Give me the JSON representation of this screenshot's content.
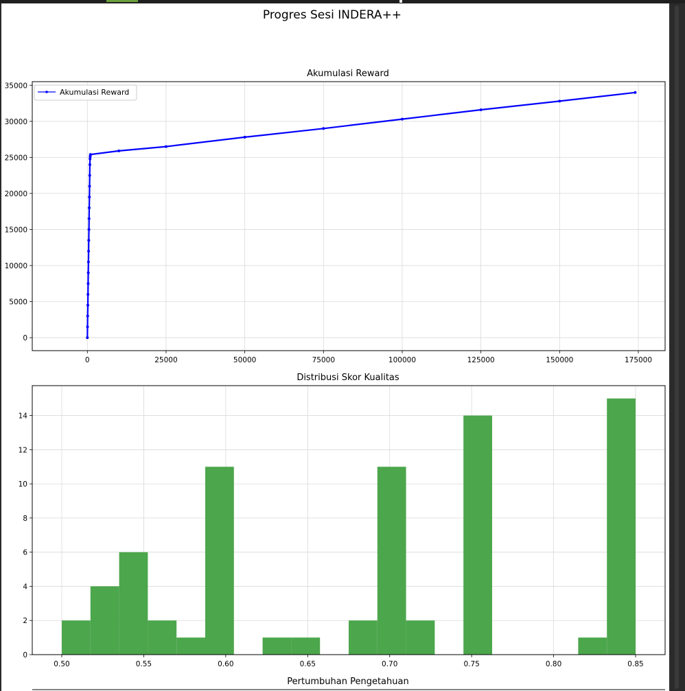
{
  "figure": {
    "title": "Progres Sesi INDERA++",
    "colors": {
      "line": "#0000ff",
      "bars": "#4ca64c",
      "grid": "#d9d9d9",
      "background": "#ffffff"
    }
  },
  "chart_data": [
    {
      "type": "line",
      "title": "Akumulasi Reward",
      "xlabel": "",
      "ylabel": "",
      "legend_position": "top-left",
      "grid": true,
      "xlim": [
        -17500,
        183500
      ],
      "ylim": [
        -1800,
        35500
      ],
      "x_ticks": [
        0,
        25000,
        50000,
        75000,
        100000,
        125000,
        150000,
        175000
      ],
      "y_ticks": [
        0,
        5000,
        10000,
        15000,
        20000,
        25000,
        30000,
        35000
      ],
      "series": [
        {
          "name": "Akumulasi Reward",
          "color": "#0000ff",
          "marker": "dot",
          "x": [
            0,
            50,
            100,
            150,
            200,
            250,
            300,
            350,
            400,
            450,
            500,
            550,
            600,
            650,
            700,
            750,
            800,
            850,
            900,
            950,
            1000,
            10000,
            25000,
            50000,
            75000,
            100000,
            125000,
            150000,
            174000
          ],
          "y": [
            0,
            1500,
            3000,
            4500,
            6000,
            7500,
            9000,
            10500,
            12000,
            13500,
            15000,
            16500,
            18000,
            19500,
            21000,
            22500,
            24000,
            24800,
            25100,
            25300,
            25400,
            25900,
            26500,
            27800,
            29000,
            30300,
            31600,
            32800,
            34000
          ]
        }
      ]
    },
    {
      "type": "bar",
      "title": "Distribusi Skor Kualitas",
      "xlabel": "",
      "ylabel": "",
      "grid": true,
      "xlim": [
        0.482,
        0.868
      ],
      "ylim": [
        0,
        15.75
      ],
      "x_ticks": [
        0.5,
        0.55,
        0.6,
        0.65,
        0.7,
        0.75,
        0.8,
        0.85
      ],
      "y_ticks": [
        0,
        2,
        4,
        6,
        8,
        10,
        12,
        14
      ],
      "bin_start": 0.5,
      "bin_width": 0.0175,
      "values": [
        2,
        4,
        6,
        2,
        1,
        11,
        0,
        1,
        1,
        0,
        2,
        11,
        2,
        0,
        14,
        0,
        0,
        0,
        1,
        15
      ]
    },
    {
      "title": "Pertumbuhan Pengetahuan"
    }
  ]
}
